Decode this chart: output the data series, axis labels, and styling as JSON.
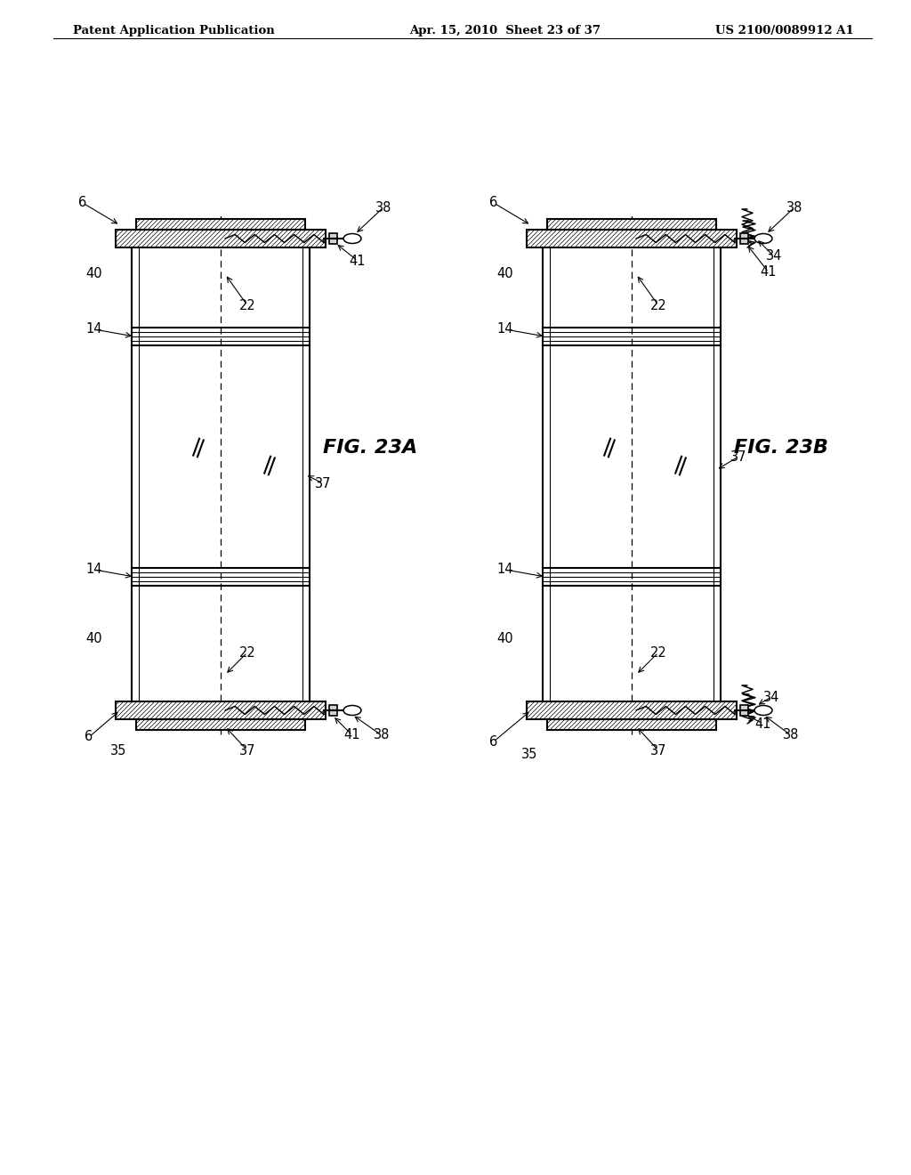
{
  "background_color": "#ffffff",
  "header_left": "Patent Application Publication",
  "header_center": "Apr. 15, 2010  Sheet 23 of 37",
  "header_right": "US 2100/0089912 A1",
  "fig_23a_label": "FIG. 23A",
  "fig_23b_label": "FIG. 23B",
  "line_color": "#000000",
  "label_fontsize": 10.5,
  "header_fontsize": 9.5,
  "fig_label_fontsize": 16
}
